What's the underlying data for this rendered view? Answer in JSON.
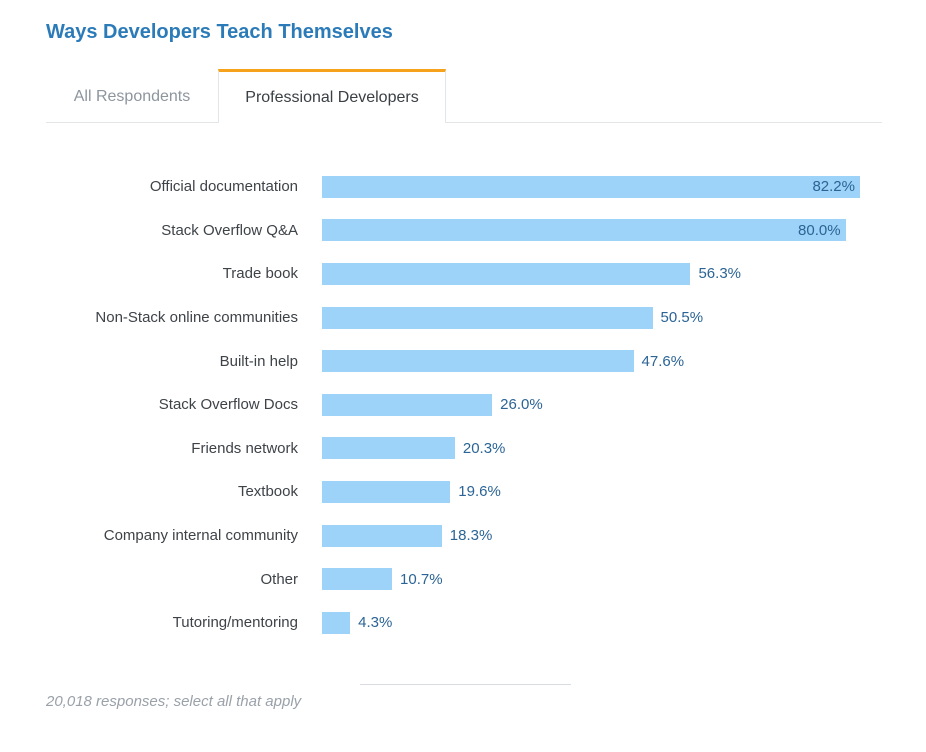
{
  "page": {
    "title": "Ways Developers Teach Themselves"
  },
  "tabs": [
    {
      "label": "All Respondents",
      "active": false
    },
    {
      "label": "Professional Developers",
      "active": true
    }
  ],
  "chart_data": {
    "type": "bar",
    "orientation": "horizontal",
    "title": "Ways Developers Teach Themselves",
    "categories": [
      "Official documentation",
      "Stack Overflow Q&A",
      "Trade book",
      "Non-Stack online communities",
      "Built-in help",
      "Stack Overflow Docs",
      "Friends network",
      "Textbook",
      "Company internal community",
      "Other",
      "Tutoring/mentoring"
    ],
    "values": [
      82.2,
      80.0,
      56.3,
      50.5,
      47.6,
      26.0,
      20.3,
      19.6,
      18.3,
      10.7,
      4.3
    ],
    "value_labels": [
      "82.2%",
      "80.0%",
      "56.3%",
      "50.5%",
      "47.6%",
      "26.0%",
      "20.3%",
      "19.6%",
      "18.3%",
      "10.7%",
      "4.3%"
    ],
    "xlabel": "",
    "ylabel": "",
    "xlim": [
      0,
      82.2
    ],
    "grid": false,
    "legend": false,
    "data_labels": true
  },
  "footer": {
    "note": "20,018 responses; select all that apply"
  },
  "colors": {
    "title_color": "#2C7BB9",
    "accent_orange": "#F7A21C",
    "bar_fill": "#9DD3F8",
    "value_label": "#2B6495",
    "category_label": "#3E4348",
    "tab_active_text": "#3B4045",
    "tab_inactive_text": "#8D959D",
    "border": "#E3E6E8",
    "footer_text": "#9AA1A8",
    "divider": "#D9DCE0"
  }
}
